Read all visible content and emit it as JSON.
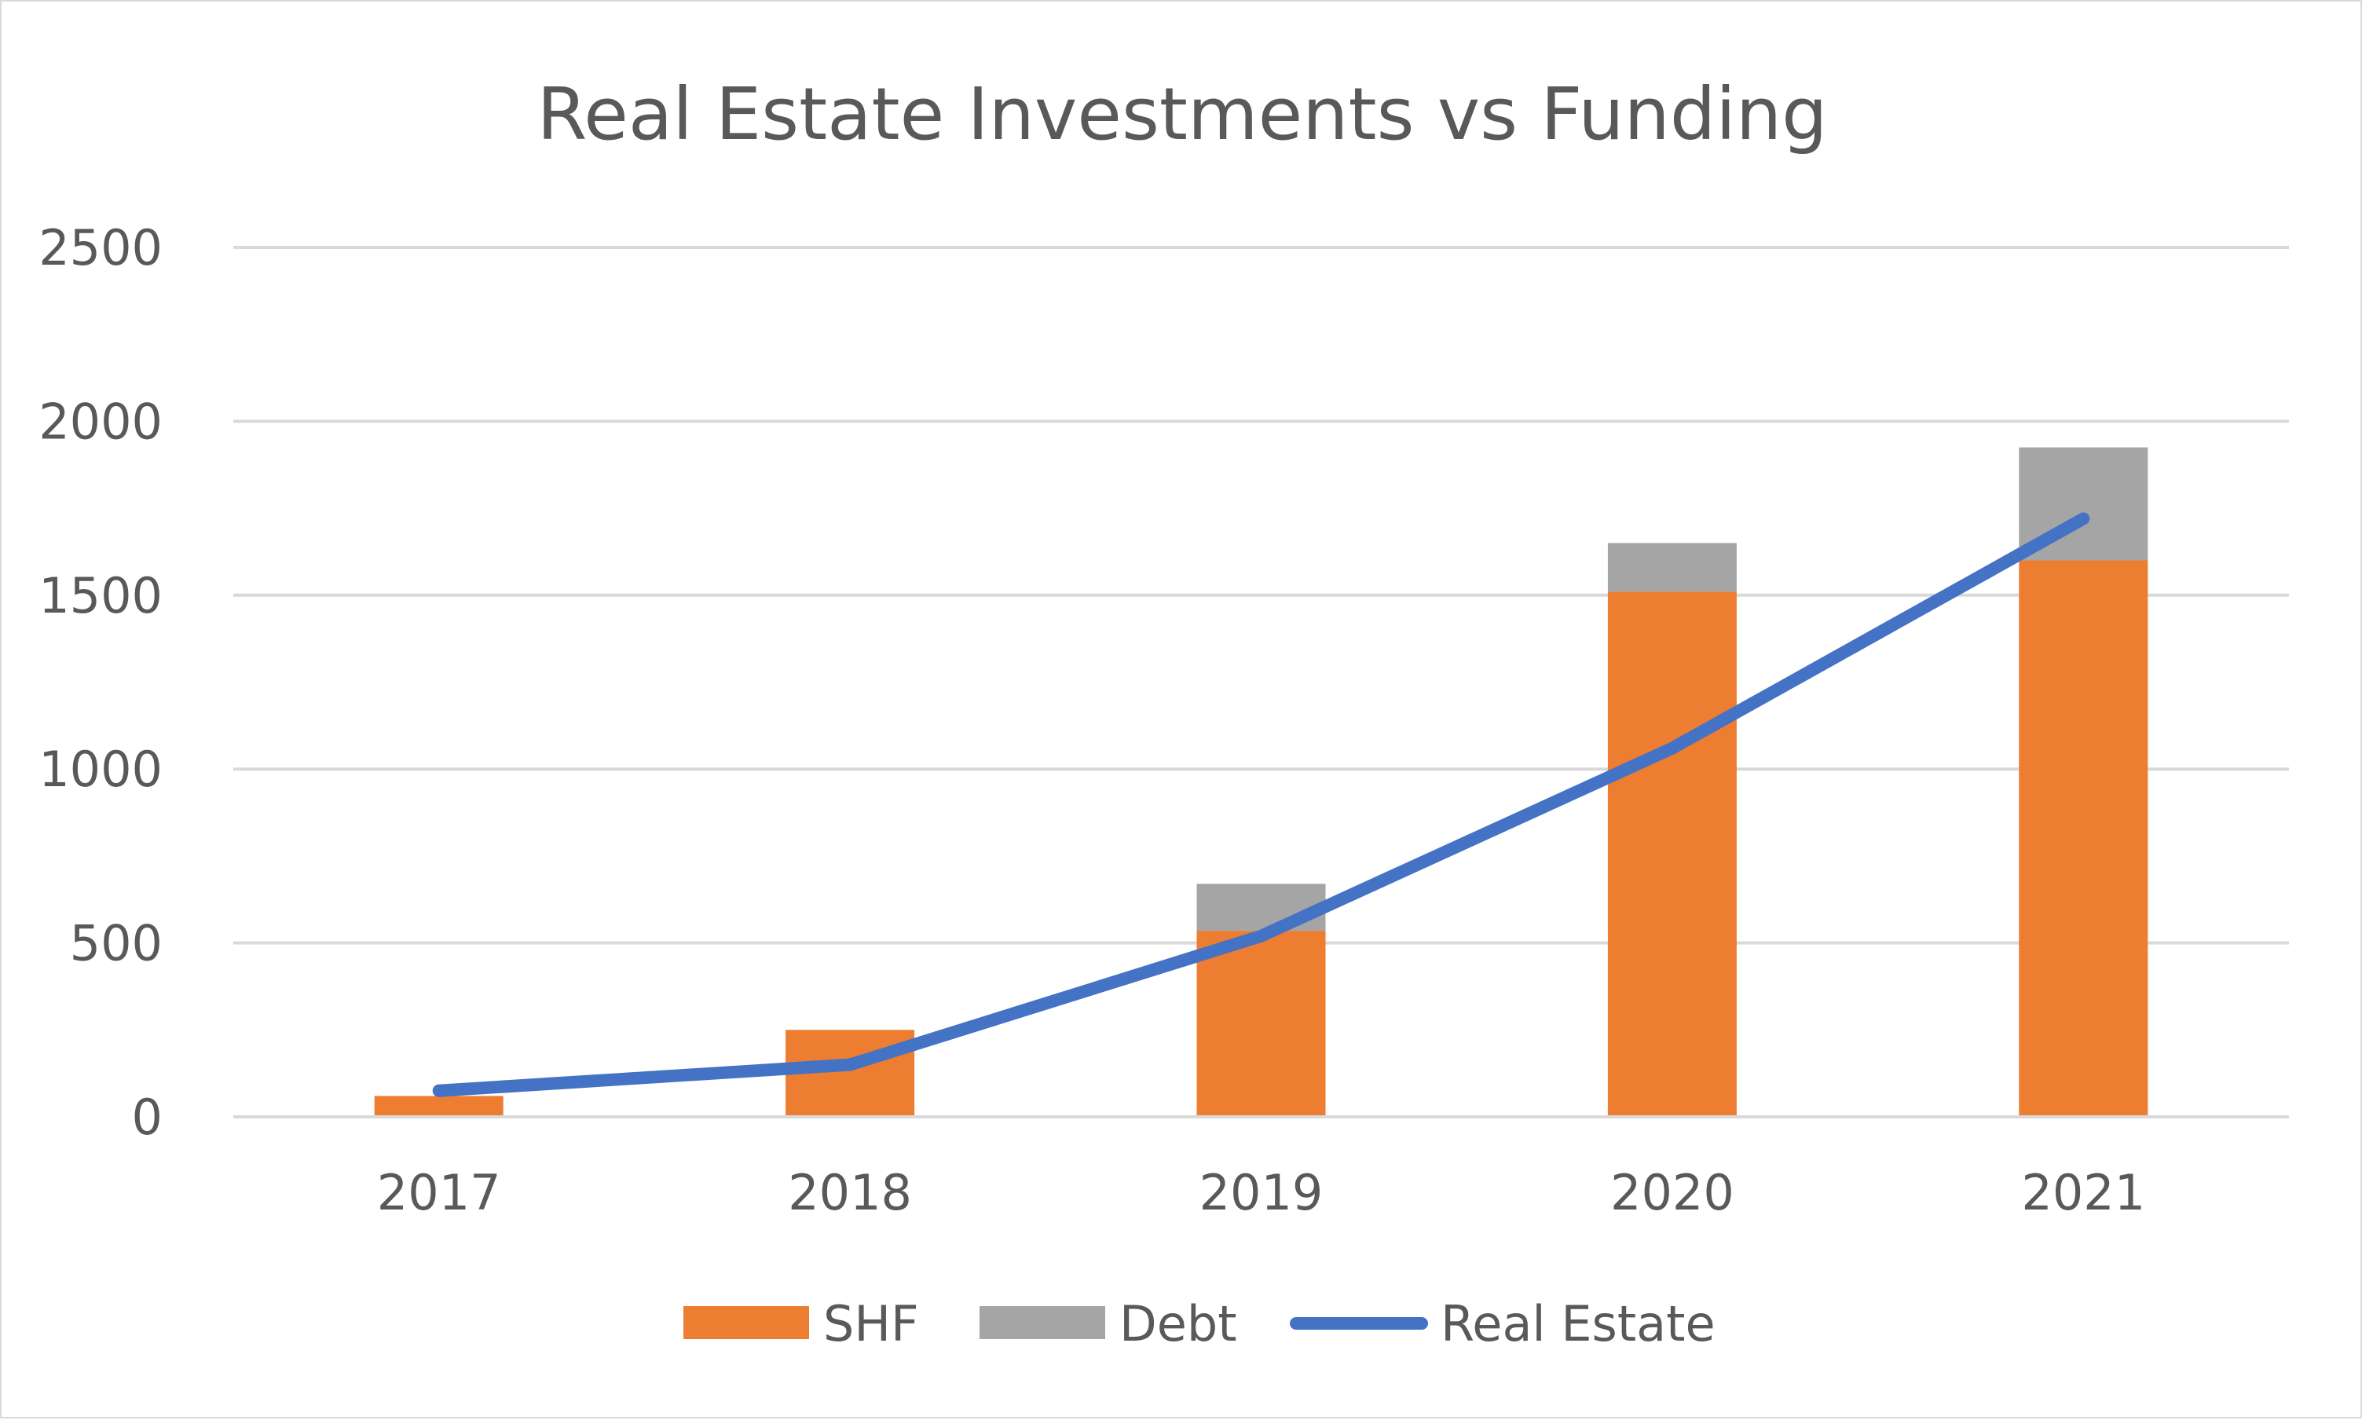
{
  "chart_data": {
    "type": "bar",
    "stacked": true,
    "title": "Real Estate Investments vs Funding",
    "xlabel": "",
    "ylabel": "",
    "categories": [
      "2017",
      "2018",
      "2019",
      "2020",
      "2021"
    ],
    "ylim": [
      0,
      2500
    ],
    "yticks": [
      "0",
      "500",
      "1000",
      "1500",
      "2000",
      "2500"
    ],
    "grid": true,
    "legend_position": "bottom",
    "series": [
      {
        "name": "SHF",
        "kind": "bar",
        "color": "#ed7d31",
        "values": [
          60,
          250,
          535,
          1510,
          1600
        ]
      },
      {
        "name": "Debt",
        "kind": "bar",
        "color": "#a5a5a5",
        "values": [
          0,
          0,
          135,
          140,
          325
        ]
      },
      {
        "name": "Real Estate",
        "kind": "line",
        "color": "#4472c4",
        "values": [
          75,
          150,
          520,
          1060,
          1720
        ]
      }
    ]
  }
}
